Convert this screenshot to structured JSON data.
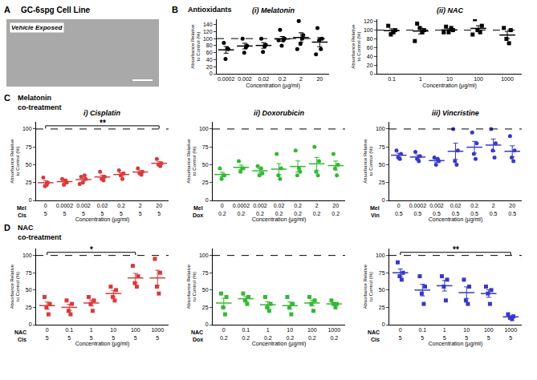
{
  "panel_a": {
    "label": "A",
    "title": "GC-6spg Cell Line",
    "image_caption": "Vehicle Exposed"
  },
  "sections": [
    {
      "label": "B",
      "title_lines": [
        "Antioxidants"
      ]
    },
    {
      "label": "C",
      "title_lines": [
        "Melatonin",
        "co-treatment"
      ]
    },
    {
      "label": "D",
      "title_lines": [
        "NAC",
        "co-treatment"
      ]
    }
  ],
  "chart_data": [
    {
      "type": "scatter",
      "title": "(i) Melatonin",
      "xlabel": "Concentration (µg/ml)",
      "ylabel": [
        "Absorbance Relative",
        "to Control (%)"
      ],
      "categories": [
        "0.0002",
        "0.002",
        "0.02",
        "0.2",
        "2",
        "20"
      ],
      "series": [
        {
          "color": "#000000",
          "marker": "circle",
          "points": [
            [
              88,
              70,
              42,
              72
            ],
            [
              100,
              80,
              60,
              75
            ],
            [
              100,
              82,
              62,
              78
            ],
            [
              125,
              100,
              80,
              95,
              95
            ],
            [
              150,
              110,
              85,
              100,
              70
            ],
            [
              130,
              100,
              95,
              70,
              55
            ]
          ],
          "mean": [
            68,
            78.8,
            80.5,
            99,
            103,
            90
          ],
          "sem": [
            9.5,
            8,
            8,
            7,
            13.5,
            13
          ]
        }
      ],
      "reference_line": 100,
      "ylim": [
        0,
        155
      ],
      "yticks": [
        0,
        20,
        40,
        60,
        80,
        100,
        120,
        140
      ],
      "grid": false
    },
    {
      "type": "scatter",
      "title": "(ii) NAC",
      "xlabel": "Concentration (µg/ml)",
      "ylabel": [
        "Absorbance Relative",
        "to Control (%)"
      ],
      "categories": [
        "0.1",
        "1",
        "10",
        "100",
        "1000"
      ],
      "series": [
        {
          "color": "#000000",
          "marker": "square",
          "points": [
            [
              110,
              100,
              90,
              95
            ],
            [
              115,
              100,
              105,
              95,
              75
            ],
            [
              108,
              100,
              95,
              105,
              95
            ],
            [
              125,
              110,
              100,
              95,
              90
            ],
            [
              105,
              100,
              80,
              70
            ]
          ],
          "mean": [
            98.8,
            98,
            100.6,
            104,
            88.8
          ],
          "sem": [
            4.3,
            6.7,
            2.6,
            6.2,
            8.3
          ]
        }
      ],
      "reference_line": 100,
      "ylim": [
        0,
        125
      ],
      "yticks": [
        0,
        20,
        40,
        60,
        80,
        100,
        120
      ],
      "grid": false
    },
    {
      "type": "scatter",
      "title": "i) Cisplatin",
      "xlabel": "Concentration (µg/ml)",
      "ylabel": [
        "Absorbance Relative",
        "to Control (%)"
      ],
      "category_label": "Mel",
      "categories": [
        "0",
        "0.0002",
        "0.002",
        "0.02",
        "0.2",
        "2",
        "20"
      ],
      "co_treatment": {
        "label": "Cis",
        "values": [
          "5",
          "5",
          "5",
          "5",
          "5",
          "5",
          "5"
        ]
      },
      "series": [
        {
          "color": "#d93a3a",
          "marker": "circle",
          "points": [
            [
              32,
              25,
              20,
              22
            ],
            [
              30,
              25,
              22,
              28
            ],
            [
              33,
              30,
              25,
              35,
              23
            ],
            [
              40,
              33,
              30,
              28
            ],
            [
              42,
              38,
              35,
              30
            ],
            [
              45,
              40,
              38,
              36
            ],
            [
              58,
              52,
              50,
              48
            ]
          ],
          "mean": [
            24.8,
            26.3,
            29.2,
            32.8,
            36.3,
            39.8,
            52
          ],
          "sem": [
            2.6,
            1.8,
            2.3,
            2.6,
            2.5,
            1.9,
            2.2
          ]
        }
      ],
      "significance": {
        "between": [
          "0",
          "20"
        ],
        "label": "**"
      },
      "reference_line": 100,
      "ylim": [
        0,
        110
      ],
      "yticks": [
        0,
        25,
        50,
        75,
        100
      ],
      "grid": false
    },
    {
      "type": "scatter",
      "title": "ii) Doxorubicin",
      "xlabel": "Concentration (µg/ml)",
      "ylabel": [
        "Absorbance Relative",
        "to Control (%)"
      ],
      "category_label": "Mel",
      "categories": [
        "0",
        "0.0002",
        "0.002",
        "0.02",
        "0.2",
        "2",
        "20"
      ],
      "co_treatment": {
        "label": "Dox",
        "values": [
          "0.2",
          "0.2",
          "0.2",
          "0.2",
          "0.2",
          "0.2",
          "0.2"
        ]
      },
      "series": [
        {
          "color": "#33b833",
          "marker": "circle",
          "points": [
            [
              45,
              35,
              30,
              35
            ],
            [
              55,
              45,
              40,
              45
            ],
            [
              48,
              38,
              35,
              45
            ],
            [
              65,
              45,
              35,
              30
            ],
            [
              70,
              40,
              35,
              45
            ],
            [
              75,
              55,
              40,
              35
            ],
            [
              65,
              50,
              45,
              35
            ]
          ],
          "mean": [
            36.3,
            46.3,
            41.5,
            43.8,
            47.5,
            51.3,
            48.8
          ],
          "sem": [
            3.1,
            3.1,
            3,
            7.7,
            7.8,
            9,
            6.3
          ]
        }
      ],
      "reference_line": 100,
      "ylim": [
        0,
        110
      ],
      "yticks": [
        0,
        25,
        50,
        75,
        100
      ],
      "grid": false
    },
    {
      "type": "scatter",
      "title": "iii) Vincristine",
      "xlabel": "Concentration (µg/ml)",
      "ylabel": [
        "Absorbance Relative",
        "to Control (%)"
      ],
      "category_label": "Mel",
      "categories": [
        "0",
        "0.0002",
        "0.002",
        "0.02",
        "0.2",
        "2",
        "20"
      ],
      "co_treatment": {
        "label": "Vin",
        "values": [
          "0.5",
          "0.5",
          "0.5",
          "0.5",
          "0.5",
          "0.5",
          "0.5"
        ]
      },
      "series": [
        {
          "color": "#3838c8",
          "marker": "circle",
          "points": [
            [
              70,
              65,
              60,
              58
            ],
            [
              68,
              62,
              58,
              55
            ],
            [
              60,
              55,
              50,
              58
            ],
            [
              100,
              70,
              55,
              50
            ],
            [
              95,
              80,
              65,
              58
            ],
            [
              100,
              80,
              70,
              60
            ],
            [
              90,
              70,
              60,
              55
            ]
          ],
          "mean": [
            63.3,
            60.8,
            55.8,
            68.8,
            74.5,
            77.5,
            68.8
          ],
          "sem": [
            2.7,
            2.8,
            2.2,
            11.3,
            8.2,
            8.5,
            7.7
          ]
        }
      ],
      "reference_line": 100,
      "ylim": [
        0,
        110
      ],
      "yticks": [
        0,
        25,
        50,
        75,
        100
      ],
      "grid": false
    },
    {
      "type": "scatter",
      "xlabel": "Concentration (µg/ml)",
      "ylabel": [
        "Absorbance Relative",
        "to Control (%)"
      ],
      "category_label": "NAC",
      "categories": [
        "0",
        "0.1",
        "1",
        "10",
        "100",
        "1000"
      ],
      "co_treatment": {
        "label": "Cis",
        "values": [
          "5",
          "5",
          "5",
          "5",
          "5",
          "5"
        ]
      },
      "series": [
        {
          "color": "#d93a3a",
          "marker": "square",
          "points": [
            [
              40,
              30,
              25,
              15
            ],
            [
              35,
              30,
              20,
              15
            ],
            [
              40,
              35,
              30,
              20
            ],
            [
              55,
              50,
              40,
              35
            ],
            [
              85,
              70,
              60,
              55
            ],
            [
              95,
              75,
              55,
              45
            ]
          ],
          "mean": [
            27.5,
            25,
            31.3,
            45,
            67.5,
            67.5
          ],
          "sem": [
            5.2,
            4.6,
            4.3,
            4.6,
            6.6,
            11.1
          ]
        }
      ],
      "significance": {
        "between": [
          "0",
          "100"
        ],
        "label": "*"
      },
      "reference_line": 100,
      "ylim": [
        0,
        110
      ],
      "yticks": [
        0,
        25,
        50,
        75,
        100
      ],
      "grid": false
    },
    {
      "type": "scatter",
      "xlabel": "Concentration (µg/ml)",
      "ylabel": [
        "Absorbance Relative",
        "to Control (%)"
      ],
      "category_label": "NAC",
      "categories": [
        "0",
        "0.1",
        "1",
        "10",
        "100",
        "1000"
      ],
      "co_treatment": {
        "label": "Dox",
        "values": [
          "0.2",
          "0.2",
          "0.2",
          "0.2",
          "0.2",
          "0.2"
        ]
      },
      "series": [
        {
          "color": "#33b833",
          "marker": "square",
          "points": [
            [
              45,
              40,
              25,
              15
            ],
            [
              45,
              40,
              35,
              30
            ],
            [
              40,
              30,
              25,
              20
            ],
            [
              40,
              30,
              25,
              15
            ],
            [
              40,
              35,
              30,
              20
            ],
            [
              35,
              30,
              30,
              25
            ]
          ],
          "mean": [
            31.3,
            37.5,
            28.8,
            27.5,
            31.3,
            30
          ],
          "sem": [
            6.9,
            3.2,
            4.3,
            5.2,
            4.3,
            2
          ]
        }
      ],
      "reference_line": 100,
      "ylim": [
        0,
        110
      ],
      "yticks": [
        0,
        25,
        50,
        75,
        100
      ],
      "grid": false
    },
    {
      "type": "scatter",
      "xlabel": "Concentration (µg/ml)",
      "ylabel": [
        "Absorbance Relative",
        "to Control (%)"
      ],
      "category_label": "NAC",
      "categories": [
        "0",
        "0.1",
        "1",
        "10",
        "100",
        "1000"
      ],
      "co_treatment": {
        "label": "Cis",
        "values": [
          "5",
          "5",
          "5",
          "5",
          "5",
          "5"
        ]
      },
      "series": [
        {
          "color": "#3838c8",
          "marker": "square",
          "points": [
            [
              90,
              75,
              70,
              65
            ],
            [
              70,
              55,
              45,
              30
            ],
            [
              70,
              65,
              55,
              35
            ],
            [
              65,
              55,
              35,
              30
            ],
            [
              55,
              50,
              45,
              30
            ],
            [
              15,
              12,
              10,
              8
            ]
          ],
          "mean": [
            75,
            50,
            56.3,
            46.3,
            45,
            11.3
          ],
          "sem": [
            5.4,
            8.4,
            7.7,
            8.3,
            5.4,
            1.5
          ]
        }
      ],
      "significance": {
        "between": [
          "0",
          "1000"
        ],
        "label": "**"
      },
      "reference_line": 100,
      "ylim": [
        0,
        110
      ],
      "yticks": [
        0,
        25,
        50,
        75,
        100
      ],
      "grid": false
    }
  ]
}
